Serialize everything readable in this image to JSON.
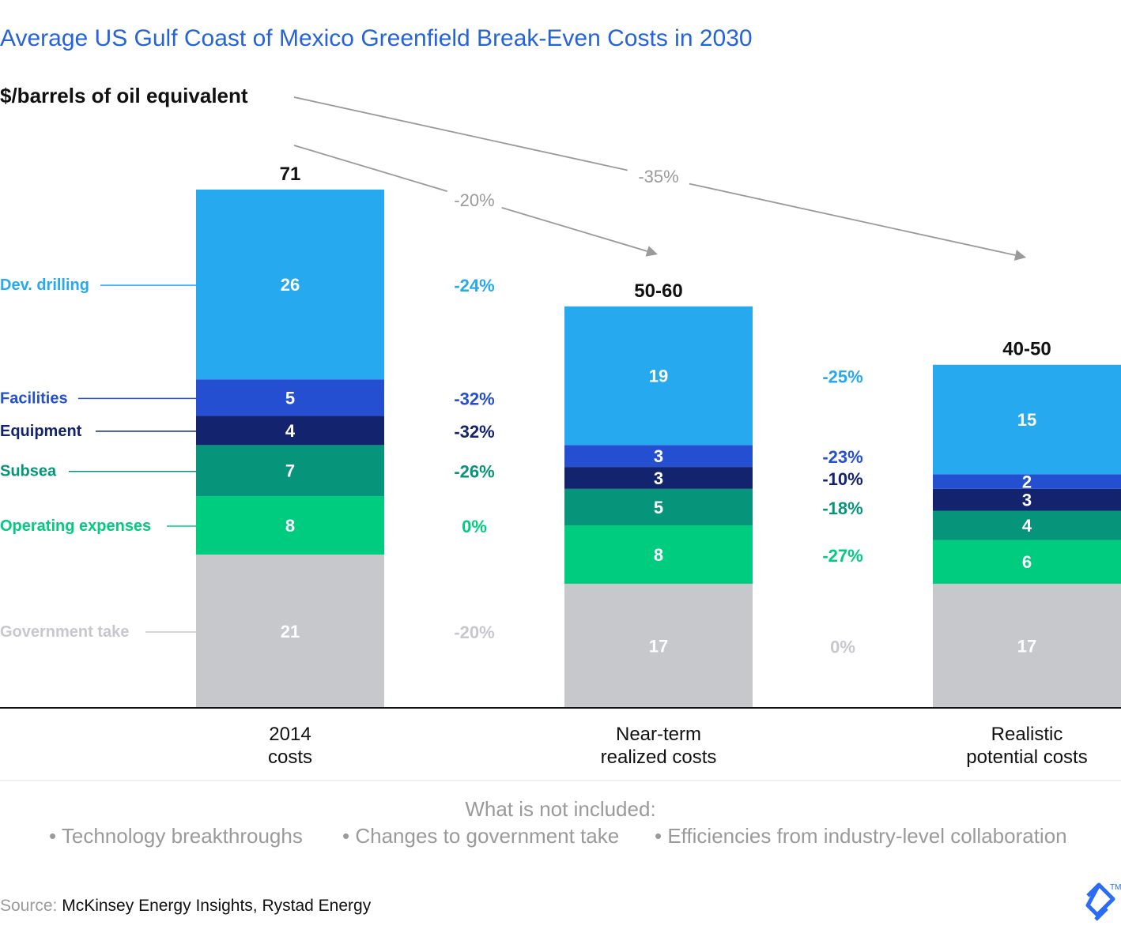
{
  "title": "Average US Gulf Coast of Mexico Greenfield Break-Even Costs in 2030",
  "unit_label": "$/barrels of oil equivalent",
  "colors": {
    "dev_drilling": "#26a9ee",
    "facilities": "#234fd0",
    "equipment": "#13236e",
    "subsea": "#06957b",
    "operating_expenses": "#00cc80",
    "government_take": "#c7c8cc",
    "title": "#2563d8",
    "arrow": "#9a9a9a"
  },
  "chart_data": {
    "type": "bar",
    "stacked": true,
    "title": "Average US Gulf Coast of Mexico Greenfield Break-Even Costs in 2030",
    "ylabel": "$/barrels of oil equivalent",
    "ylim": [
      0,
      71
    ],
    "categories": [
      [
        "2014",
        "costs"
      ],
      [
        "Near-term",
        "realized costs"
      ],
      [
        "Realistic",
        "potential costs"
      ]
    ],
    "totals": [
      "71",
      "50-60",
      "40-50"
    ],
    "series": [
      {
        "name": "Government take",
        "values": [
          21,
          17,
          17
        ]
      },
      {
        "name": "Operating expenses",
        "values": [
          8,
          8,
          6
        ]
      },
      {
        "name": "Subsea",
        "values": [
          7,
          5,
          4
        ]
      },
      {
        "name": "Equipment",
        "values": [
          4,
          3,
          3
        ]
      },
      {
        "name": "Facilities",
        "values": [
          5,
          3,
          2
        ]
      },
      {
        "name": "Dev. drilling",
        "values": [
          26,
          19,
          15
        ]
      }
    ],
    "changes": [
      {
        "Dev. drilling": "-24%",
        "Facilities": "-32%",
        "Equipment": "-32%",
        "Subsea": "-26%",
        "Operating expenses": "0%",
        "Government take": "-20%"
      },
      {
        "Dev. drilling": "-25%",
        "Facilities": "-23%",
        "Equipment": "-10%",
        "Subsea": "-18%",
        "Operating expenses": "-27%",
        "Government take": "0%"
      }
    ],
    "arrows": [
      {
        "from": "2014 costs",
        "to": "Near-term realized costs",
        "label": "-20%"
      },
      {
        "from": "2014 costs",
        "to": "Realistic potential costs",
        "label": "-35%"
      }
    ]
  },
  "not_included": {
    "heading": "What is not included:",
    "items": [
      "• Technology breakthroughs",
      "• Changes to government take",
      "• Efficiencies from industry-level collaboration"
    ]
  },
  "source": {
    "prefix": "Source:",
    "text": " McKinsey Energy Insights, Rystad Energy"
  }
}
